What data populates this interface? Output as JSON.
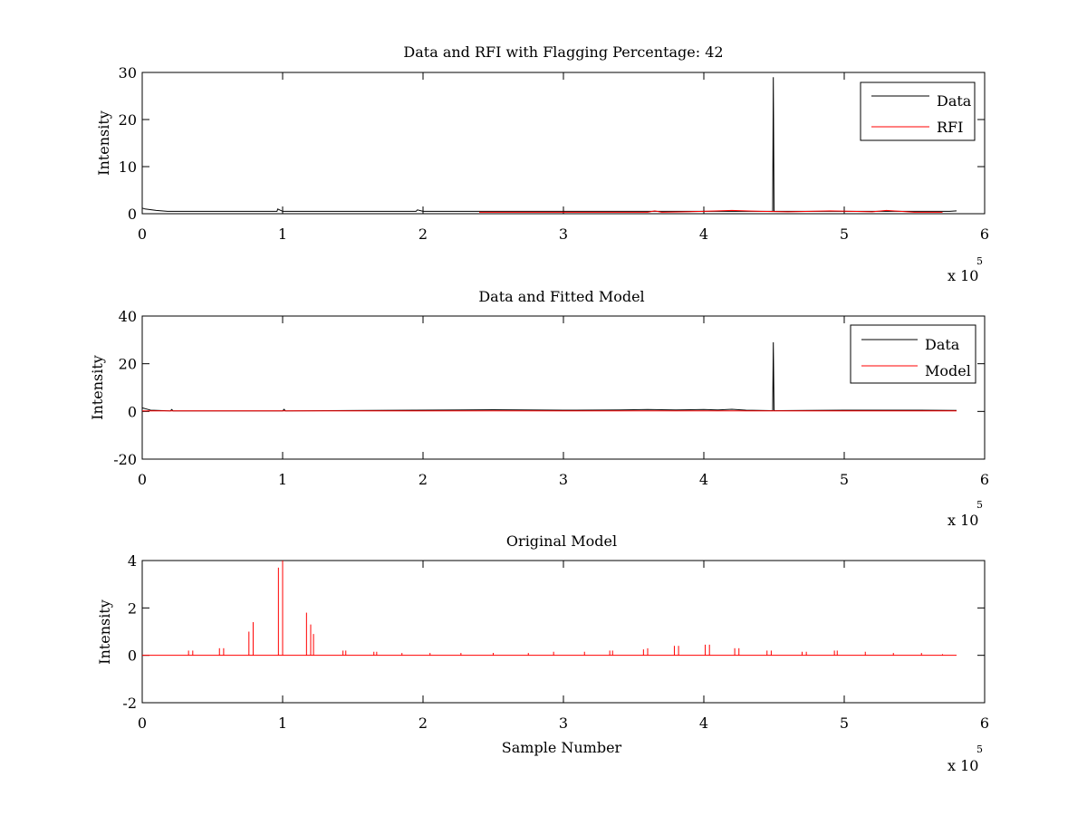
{
  "chart_data": [
    {
      "type": "line",
      "title": "Data and RFI with Flagging Percentage: 42",
      "xlabel": "",
      "ylabel": "Intensity",
      "xlim": [
        0,
        6
      ],
      "ylim": [
        0,
        30
      ],
      "xticks": [
        "0",
        "1",
        "2",
        "3",
        "4",
        "5",
        "6"
      ],
      "yticks": [
        "0",
        "10",
        "20",
        "30"
      ],
      "x_multiplier": {
        "base": "x 10",
        "exponent": "5"
      },
      "legend": {
        "position": "top-right",
        "entries": [
          "Data",
          "RFI"
        ]
      },
      "grid": false,
      "series": [
        {
          "name": "Data",
          "color": "#000000",
          "x": [
            0,
            0.02,
            0.1,
            0.18,
            0.3,
            0.96,
            0.965,
            1.0,
            1.5,
            1.95,
            1.96,
            2.0,
            3.0,
            3.5,
            4.0,
            4.49,
            4.495,
            4.5,
            5.0,
            5.5,
            5.75,
            5.8
          ],
          "y": [
            1.2,
            1.0,
            0.7,
            0.5,
            0.5,
            0.5,
            1.0,
            0.5,
            0.5,
            0.5,
            0.8,
            0.5,
            0.5,
            0.5,
            0.5,
            0.5,
            29,
            0.5,
            0.5,
            0.5,
            0.5,
            0.6
          ]
        },
        {
          "name": "RFI",
          "color": "#ff0000",
          "x": [
            2.4,
            3.0,
            3.6,
            3.65,
            3.7,
            4.0,
            4.2,
            4.4,
            4.6,
            4.9,
            5.2,
            5.3,
            5.5,
            5.7
          ],
          "y": [
            0.3,
            0.3,
            0.3,
            0.6,
            0.3,
            0.5,
            0.7,
            0.5,
            0.4,
            0.6,
            0.4,
            0.7,
            0.3,
            0.3
          ]
        }
      ]
    },
    {
      "type": "line",
      "title": "Data and Fitted Model",
      "xlabel": "",
      "ylabel": "Intensity",
      "xlim": [
        0,
        6
      ],
      "ylim": [
        -20,
        40
      ],
      "xticks": [
        "0",
        "1",
        "2",
        "3",
        "4",
        "5",
        "6"
      ],
      "yticks": [
        "-20",
        "0",
        "20",
        "40"
      ],
      "x_multiplier": {
        "base": "x 10",
        "exponent": "5"
      },
      "legend": {
        "position": "top-right",
        "entries": [
          "Data",
          "Model"
        ]
      },
      "grid": false,
      "series": [
        {
          "name": "Data",
          "color": "#000000",
          "x": [
            0,
            0.03,
            0.06,
            0.2,
            0.21,
            0.22,
            1.0,
            1.01,
            1.02,
            2.5,
            3.0,
            3.4,
            3.6,
            3.8,
            4.0,
            4.1,
            4.2,
            4.3,
            4.49,
            4.495,
            4.5,
            5.0,
            5.5,
            5.8
          ],
          "y": [
            1.5,
            1.0,
            0.5,
            0.2,
            0.8,
            0.2,
            0.2,
            0.9,
            0.2,
            0.7,
            0.5,
            0.6,
            0.8,
            0.6,
            0.8,
            0.6,
            0.9,
            0.5,
            0.3,
            29,
            0.3,
            0.5,
            0.5,
            0.4
          ]
        },
        {
          "name": "Model",
          "color": "#ff0000",
          "x": [
            0,
            1.0,
            2.0,
            3.0,
            4.0,
            5.0,
            5.8
          ],
          "y": [
            0.2,
            0.2,
            0.2,
            0.2,
            0.2,
            0.2,
            0.2
          ]
        }
      ]
    },
    {
      "type": "line",
      "title": "Original Model",
      "xlabel": "Sample Number",
      "ylabel": "Intensity",
      "xlim": [
        0,
        6
      ],
      "ylim": [
        -2,
        4
      ],
      "xticks": [
        "0",
        "1",
        "2",
        "3",
        "4",
        "5",
        "6"
      ],
      "yticks": [
        "-2",
        "0",
        "2",
        "4"
      ],
      "x_multiplier": {
        "base": "x 10",
        "exponent": "5"
      },
      "grid": false,
      "series": [
        {
          "color": "#ff0000",
          "spikes": [
            [
              0.33,
              0.2
            ],
            [
              0.36,
              0.2
            ],
            [
              0.55,
              0.3
            ],
            [
              0.58,
              0.3
            ],
            [
              0.76,
              1.0
            ],
            [
              0.79,
              1.4
            ],
            [
              0.97,
              3.7
            ],
            [
              1.0,
              4.0
            ],
            [
              1.17,
              1.8
            ],
            [
              1.2,
              1.3
            ],
            [
              1.22,
              0.9
            ],
            [
              1.43,
              0.2
            ],
            [
              1.45,
              0.2
            ],
            [
              1.65,
              0.15
            ],
            [
              1.67,
              0.15
            ],
            [
              1.85,
              0.1
            ],
            [
              2.05,
              0.1
            ],
            [
              2.27,
              0.1
            ],
            [
              2.5,
              0.1
            ],
            [
              2.75,
              0.1
            ],
            [
              2.93,
              0.15
            ],
            [
              3.15,
              0.15
            ],
            [
              3.33,
              0.2
            ],
            [
              3.35,
              0.2
            ],
            [
              3.57,
              0.25
            ],
            [
              3.6,
              0.3
            ],
            [
              3.79,
              0.4
            ],
            [
              3.82,
              0.4
            ],
            [
              4.01,
              0.45
            ],
            [
              4.04,
              0.45
            ],
            [
              4.22,
              0.3
            ],
            [
              4.25,
              0.3
            ],
            [
              4.45,
              0.2
            ],
            [
              4.48,
              0.2
            ],
            [
              4.7,
              0.15
            ],
            [
              4.73,
              0.15
            ],
            [
              4.93,
              0.2
            ],
            [
              4.95,
              0.2
            ],
            [
              5.15,
              0.15
            ],
            [
              5.35,
              0.1
            ],
            [
              5.55,
              0.1
            ],
            [
              5.7,
              0.05
            ]
          ]
        }
      ]
    }
  ]
}
